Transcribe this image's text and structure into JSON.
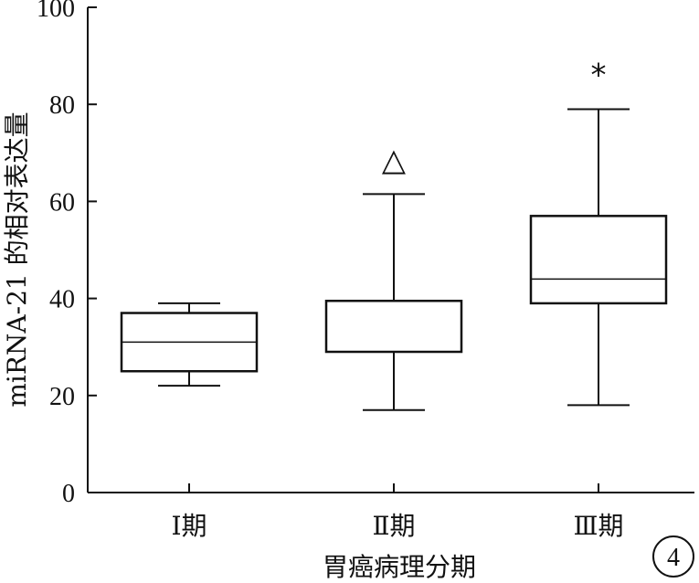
{
  "chart_data": {
    "type": "boxplot",
    "categories": [
      "Ⅰ期",
      "Ⅱ期",
      "Ⅲ期"
    ],
    "boxes": [
      {
        "category": "Ⅰ期",
        "whisker_low": 22,
        "q1": 25,
        "median": 31,
        "q3": 37,
        "whisker_high": 39,
        "annotation": ""
      },
      {
        "category": "Ⅱ期",
        "whisker_low": 17,
        "q1": 29,
        "median": 29,
        "q3": 39.5,
        "whisker_high": 61.5,
        "annotation": "△"
      },
      {
        "category": "Ⅲ期",
        "whisker_low": 18,
        "q1": 39,
        "median": 44,
        "q3": 57,
        "whisker_high": 79,
        "annotation": "*"
      }
    ],
    "xlabel": "胃癌病理分期",
    "ylabel": "miRNA-21 的相对表达量",
    "ylim": [
      0,
      100
    ],
    "yticks": [
      0,
      20,
      40,
      60,
      80,
      100
    ],
    "grid": false,
    "colors": {
      "stroke": "#111111",
      "background": "#ffffff"
    }
  },
  "figure_label": "4"
}
